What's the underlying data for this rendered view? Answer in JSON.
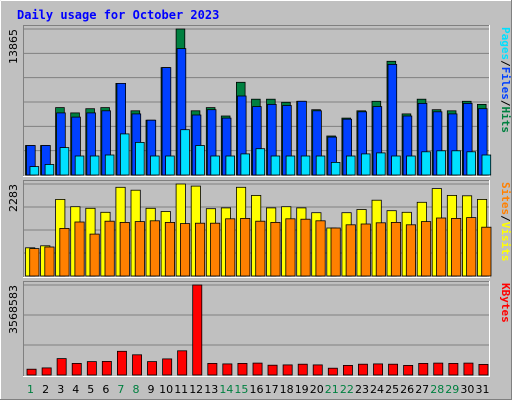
{
  "chart_data": {
    "type": "bar",
    "title": "Daily usage for October 2023",
    "categories": [
      "1",
      "2",
      "3",
      "4",
      "5",
      "6",
      "7",
      "8",
      "9",
      "10",
      "11",
      "12",
      "13",
      "14",
      "15",
      "16",
      "17",
      "18",
      "19",
      "20",
      "21",
      "22",
      "23",
      "24",
      "25",
      "26",
      "27",
      "28",
      "29",
      "30",
      "31"
    ],
    "weekend_days": [
      "1",
      "7",
      "8",
      "14",
      "15",
      "21",
      "22",
      "28",
      "29"
    ],
    "panels": [
      {
        "id": "hits-files-pages",
        "ymax_label": "13865",
        "ymax": 13865,
        "right_label": {
          "parts": [
            "Pages",
            "/",
            "Files",
            "/",
            "Hits"
          ]
        },
        "series": [
          {
            "name": "Hits",
            "color": "#008040",
            "values": [
              2800,
              2800,
              6400,
              5900,
              6300,
              6400,
              8700,
              6100,
              5200,
              10200,
              13865,
              6100,
              6400,
              5600,
              8800,
              7200,
              7200,
              6900,
              7000,
              6200,
              3700,
              5400,
              6100,
              7000,
              10800,
              5800,
              7200,
              6200,
              6100,
              7000,
              6700
            ]
          },
          {
            "name": "Files",
            "color": "#0040ff",
            "values": [
              2800,
              2800,
              5900,
              5500,
              5900,
              6100,
              8700,
              5800,
              5200,
              10200,
              12000,
              5700,
              6200,
              5400,
              7500,
              6500,
              6700,
              6600,
              7000,
              6100,
              3600,
              5300,
              6000,
              6500,
              10500,
              5600,
              6800,
              6000,
              5800,
              6800,
              6300
            ]
          },
          {
            "name": "Pages",
            "color": "#00e0ff",
            "values": [
              800,
              1000,
              2600,
              1800,
              1800,
              1900,
              3900,
              3100,
              1800,
              1800,
              4300,
              2800,
              1800,
              1800,
              2000,
              2500,
              1800,
              1800,
              1800,
              1800,
              1200,
              1800,
              2000,
              2100,
              1800,
              1800,
              2200,
              2300,
              2300,
              2200,
              1900
            ]
          }
        ]
      },
      {
        "id": "visits-sites",
        "ymax_label": "2283",
        "ymax": 2283,
        "right_label": {
          "parts": [
            "Sites",
            "/",
            "Visits"
          ]
        },
        "series": [
          {
            "name": "Visits",
            "color": "#ffff00",
            "values": [
              700,
              750,
              1900,
              1720,
              1680,
              1580,
              2200,
              2130,
              1680,
              1600,
              2283,
              2230,
              1670,
              1690,
              2200,
              2000,
              1690,
              1720,
              1690,
              1570,
              1190,
              1570,
              1650,
              1880,
              1620,
              1580,
              1830,
              2170,
              2000,
              1990,
              1900
            ]
          },
          {
            "name": "Sites",
            "color": "#ff8000",
            "values": [
              680,
              720,
              1180,
              1340,
              1040,
              1360,
              1330,
              1350,
              1370,
              1330,
              1300,
              1310,
              1310,
              1420,
              1430,
              1360,
              1330,
              1420,
              1410,
              1370,
              1190,
              1270,
              1290,
              1320,
              1330,
              1270,
              1350,
              1440,
              1430,
              1450,
              1210
            ]
          }
        ]
      },
      {
        "id": "kbytes",
        "ymax_label": "3568583",
        "ymax": 3568583,
        "right_label": {
          "parts": [
            "KBytes"
          ]
        },
        "series": [
          {
            "name": "KBytes",
            "color": "#ff0000",
            "values": [
              230000,
              280000,
              650000,
              460000,
              530000,
              540000,
              940000,
              800000,
              530000,
              640000,
              960000,
              3568583,
              460000,
              440000,
              460000,
              470000,
              390000,
              400000,
              430000,
              400000,
              270000,
              380000,
              430000,
              440000,
              430000,
              380000,
              460000,
              470000,
              460000,
              470000,
              420000
            ]
          }
        ]
      }
    ],
    "label_colors": {
      "Hits": "#008040",
      "Files": "#0040ff",
      "Pages": "#00e0ff",
      "Visits": "#ffff00",
      "Sites": "#ff8000",
      "KBytes": "#ff0000",
      "separator": "#000000",
      "title": "#0000ff",
      "weekday": "#000000",
      "weekend": "#008040"
    }
  }
}
